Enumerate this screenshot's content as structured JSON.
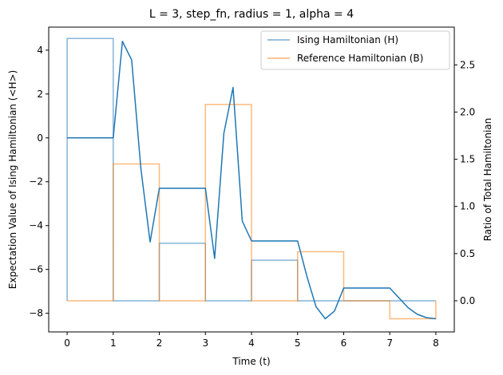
{
  "chart_data": {
    "type": "line",
    "title": "L = 3, step_fn, radius = 1, alpha = 4",
    "xlabel": "Time (t)",
    "ylabel_left": "Expectation Value of Ising Hamiltonian (<H>)",
    "ylabel_right": "Ratio of Total Hamiltonian",
    "xlim": [
      -0.4,
      8.4
    ],
    "ylim_left": [
      -8.85,
      5.05
    ],
    "ylim_right": [
      -0.33,
      2.9
    ],
    "xticks": [
      0,
      1,
      2,
      3,
      4,
      5,
      6,
      7,
      8
    ],
    "xtick_labels": [
      "0",
      "1",
      "2",
      "3",
      "4",
      "5",
      "6",
      "7",
      "8"
    ],
    "yticks_left": [
      4,
      2,
      0,
      -2,
      -4,
      -6,
      -8
    ],
    "ytick_labels_left": [
      "4",
      "2",
      "0",
      "−2",
      "−4",
      "−6",
      "−8"
    ],
    "yticks_right": [
      2.5,
      2.0,
      1.5,
      1.0,
      0.5,
      0.0
    ],
    "ytick_labels_right": [
      "2.5",
      "2.0",
      "1.5",
      "1.0",
      "0.5",
      "0.0"
    ],
    "legend": {
      "position": "upper-right"
    },
    "series": [
      {
        "name": "Ising Hamiltonian (H)",
        "axis": "right",
        "color": "#1f77b4",
        "style": "step",
        "segments": [
          {
            "from": 0,
            "to": 1,
            "value": 2.78
          },
          {
            "from": 1,
            "to": 2,
            "value": 0.0
          },
          {
            "from": 2,
            "to": 3,
            "value": 0.61
          },
          {
            "from": 3,
            "to": 4,
            "value": 0.0
          },
          {
            "from": 4,
            "to": 5,
            "value": 0.43
          },
          {
            "from": 5,
            "to": 6,
            "value": 0.0
          },
          {
            "from": 6,
            "to": 7,
            "value": 0.0
          },
          {
            "from": 7,
            "to": 8,
            "value": 0.0
          }
        ]
      },
      {
        "name": "Reference Hamiltonian (B)",
        "axis": "right",
        "color": "#ff7f0e",
        "style": "step",
        "segments": [
          {
            "from": 0,
            "to": 1,
            "value": 0.0
          },
          {
            "from": 1,
            "to": 2,
            "value": 1.45
          },
          {
            "from": 2,
            "to": 3,
            "value": 0.0
          },
          {
            "from": 3,
            "to": 4,
            "value": 2.08
          },
          {
            "from": 4,
            "to": 5,
            "value": 0.0
          },
          {
            "from": 5,
            "to": 6,
            "value": 0.52
          },
          {
            "from": 6,
            "to": 7,
            "value": 0.0
          },
          {
            "from": 7,
            "to": 8,
            "value": -0.19
          }
        ]
      },
      {
        "name": "<H>",
        "axis": "left",
        "color": "#1f77b4",
        "style": "line",
        "x": [
          0,
          1,
          1.2,
          1.4,
          1.6,
          1.8,
          2,
          3,
          3.2,
          3.4,
          3.6,
          3.8,
          4,
          5,
          5.2,
          5.4,
          5.6,
          5.8,
          6,
          7,
          7.2,
          7.4,
          7.6,
          7.8,
          8
        ],
        "y": [
          0,
          0,
          4.4,
          3.55,
          -1.4,
          -4.75,
          -2.3,
          -2.3,
          -5.5,
          0.2,
          2.3,
          -3.8,
          -4.7,
          -4.7,
          -6.3,
          -7.7,
          -8.25,
          -7.9,
          -6.85,
          -6.85,
          -7.3,
          -7.75,
          -8.05,
          -8.2,
          -8.25
        ]
      }
    ]
  }
}
